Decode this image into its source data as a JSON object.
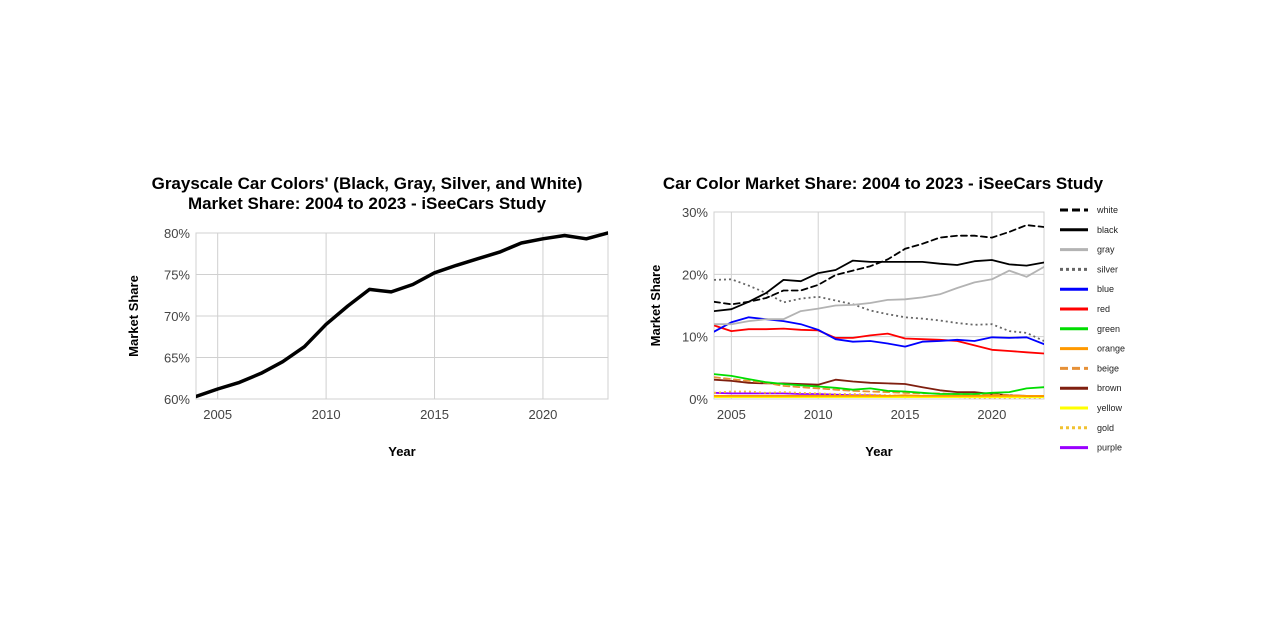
{
  "chart_data": [
    {
      "type": "line",
      "title_lines": [
        "Grayscale Car Colors' (Black, Gray, Silver, and White)",
        "Market Share: 2004 to 2023 - iSeeCars Study"
      ],
      "xlabel": "Year",
      "ylabel": "Market Share",
      "x": [
        2004,
        2005,
        2006,
        2007,
        2008,
        2009,
        2010,
        2011,
        2012,
        2013,
        2014,
        2015,
        2016,
        2017,
        2018,
        2019,
        2020,
        2021,
        2022,
        2023
      ],
      "xlim": [
        2004,
        2023
      ],
      "ylim": [
        60,
        80
      ],
      "xticks": [
        2005,
        2010,
        2015,
        2020
      ],
      "yticks": [
        60,
        65,
        70,
        75,
        80
      ],
      "ytick_suffix": "%",
      "grid": true,
      "series": [
        {
          "name": "Grayscale",
          "color": "#000000",
          "dash": "solid",
          "values": [
            60.3,
            61.2,
            62.0,
            63.1,
            64.5,
            66.3,
            69.0,
            71.2,
            73.2,
            72.9,
            73.8,
            75.2,
            76.1,
            76.9,
            77.7,
            78.8,
            79.3,
            79.7,
            79.3,
            80.0
          ]
        }
      ]
    },
    {
      "type": "line",
      "title_lines": [
        "Car Color Market Share: 2004 to 2023 - iSeeCars Study"
      ],
      "xlabel": "Year",
      "ylabel": "Market Share",
      "x": [
        2004,
        2005,
        2006,
        2007,
        2008,
        2009,
        2010,
        2011,
        2012,
        2013,
        2014,
        2015,
        2016,
        2017,
        2018,
        2019,
        2020,
        2021,
        2022,
        2023
      ],
      "xlim": [
        2004,
        2023
      ],
      "ylim": [
        0,
        30
      ],
      "xticks": [
        2005,
        2010,
        2015,
        2020
      ],
      "yticks": [
        0,
        10,
        20,
        30
      ],
      "ytick_suffix": "%",
      "grid": true,
      "legend_position": "right",
      "series": [
        {
          "name": "white",
          "color": "#000000",
          "dash": "dashed",
          "values": [
            15.6,
            15.2,
            15.6,
            16.2,
            17.4,
            17.4,
            18.3,
            19.9,
            20.6,
            21.3,
            22.4,
            24.1,
            24.9,
            25.9,
            26.2,
            26.2,
            25.9,
            26.8,
            27.9,
            27.6
          ]
        },
        {
          "name": "black",
          "color": "#000000",
          "dash": "solid",
          "values": [
            14.1,
            14.4,
            15.6,
            17.0,
            19.1,
            18.9,
            20.2,
            20.7,
            22.2,
            22.0,
            22.0,
            22.0,
            22.0,
            21.7,
            21.5,
            22.1,
            22.3,
            21.6,
            21.4,
            21.9
          ]
        },
        {
          "name": "gray",
          "color": "#b3b3b3",
          "dash": "solid",
          "values": [
            12.0,
            12.0,
            12.5,
            12.8,
            12.8,
            14.1,
            14.5,
            15.0,
            15.1,
            15.4,
            15.9,
            16.0,
            16.3,
            16.8,
            17.8,
            18.7,
            19.2,
            20.6,
            19.6,
            21.2
          ]
        },
        {
          "name": "silver",
          "color": "#666666",
          "dash": "dotted",
          "values": [
            19.1,
            19.2,
            18.2,
            17.0,
            15.5,
            16.1,
            16.4,
            15.8,
            15.2,
            14.2,
            13.6,
            13.1,
            12.9,
            12.6,
            12.2,
            11.9,
            12.0,
            10.9,
            10.6,
            9.3
          ]
        },
        {
          "name": "blue",
          "color": "#0000ff",
          "dash": "solid",
          "values": [
            10.8,
            12.3,
            13.1,
            12.8,
            12.5,
            12.0,
            11.1,
            9.6,
            9.2,
            9.3,
            8.9,
            8.4,
            9.2,
            9.3,
            9.5,
            9.3,
            9.9,
            9.8,
            9.9,
            8.8
          ]
        },
        {
          "name": "red",
          "color": "#ff0000",
          "dash": "solid",
          "values": [
            11.8,
            10.9,
            11.2,
            11.2,
            11.3,
            11.1,
            11.0,
            9.8,
            9.8,
            10.2,
            10.5,
            9.7,
            9.6,
            9.5,
            9.3,
            8.6,
            7.9,
            7.7,
            7.5,
            7.3
          ]
        },
        {
          "name": "green",
          "color": "#00dd00",
          "dash": "solid",
          "values": [
            4.0,
            3.7,
            3.2,
            2.7,
            2.4,
            2.2,
            2.0,
            1.8,
            1.5,
            1.7,
            1.3,
            1.2,
            1.0,
            0.8,
            0.8,
            0.8,
            1.0,
            1.1,
            1.7,
            1.9
          ]
        },
        {
          "name": "orange",
          "color": "#ff9900",
          "dash": "solid",
          "values": [
            0.5,
            0.5,
            0.5,
            0.5,
            0.5,
            0.5,
            0.5,
            0.5,
            0.5,
            0.5,
            0.5,
            0.6,
            0.5,
            0.5,
            0.5,
            0.5,
            0.5,
            0.5,
            0.5,
            0.5
          ]
        },
        {
          "name": "beige",
          "color": "#e69138",
          "dash": "dashed",
          "values": [
            3.5,
            3.2,
            2.9,
            2.6,
            2.1,
            1.9,
            1.7,
            1.5,
            1.3,
            1.2,
            1.1,
            1.0,
            0.9,
            0.9,
            0.8,
            0.8,
            0.7,
            0.6,
            0.5,
            0.5
          ]
        },
        {
          "name": "brown",
          "color": "#7f1f0f",
          "dash": "solid",
          "values": [
            3.1,
            2.9,
            2.6,
            2.5,
            2.5,
            2.4,
            2.3,
            3.1,
            2.8,
            2.6,
            2.5,
            2.4,
            1.9,
            1.4,
            1.1,
            1.1,
            0.8,
            0.6,
            0.5,
            0.5
          ]
        },
        {
          "name": "yellow",
          "color": "#ffff00",
          "dash": "solid",
          "values": [
            0.3,
            0.3,
            0.3,
            0.3,
            0.3,
            0.3,
            0.3,
            0.3,
            0.3,
            0.3,
            0.3,
            0.3,
            0.3,
            0.3,
            0.3,
            0.3,
            0.3,
            0.3,
            0.3,
            0.3
          ]
        },
        {
          "name": "gold",
          "color": "#f1c232",
          "dash": "dotted",
          "values": [
            1.0,
            1.2,
            1.2,
            1.0,
            1.1,
            1.0,
            0.9,
            0.8,
            0.8,
            0.7,
            0.6,
            0.5,
            0.4,
            0.3,
            0.3,
            0.2,
            0.2,
            0.2,
            0.2,
            0.2
          ]
        },
        {
          "name": "purple",
          "color": "#9900ff",
          "dash": "solid",
          "values": [
            1.0,
            0.9,
            0.9,
            0.9,
            0.9,
            0.8,
            0.8,
            0.7,
            0.6,
            0.6,
            0.5,
            0.5,
            0.5,
            0.4,
            0.4,
            0.4,
            0.4,
            0.4,
            0.3,
            0.3
          ]
        }
      ]
    }
  ]
}
